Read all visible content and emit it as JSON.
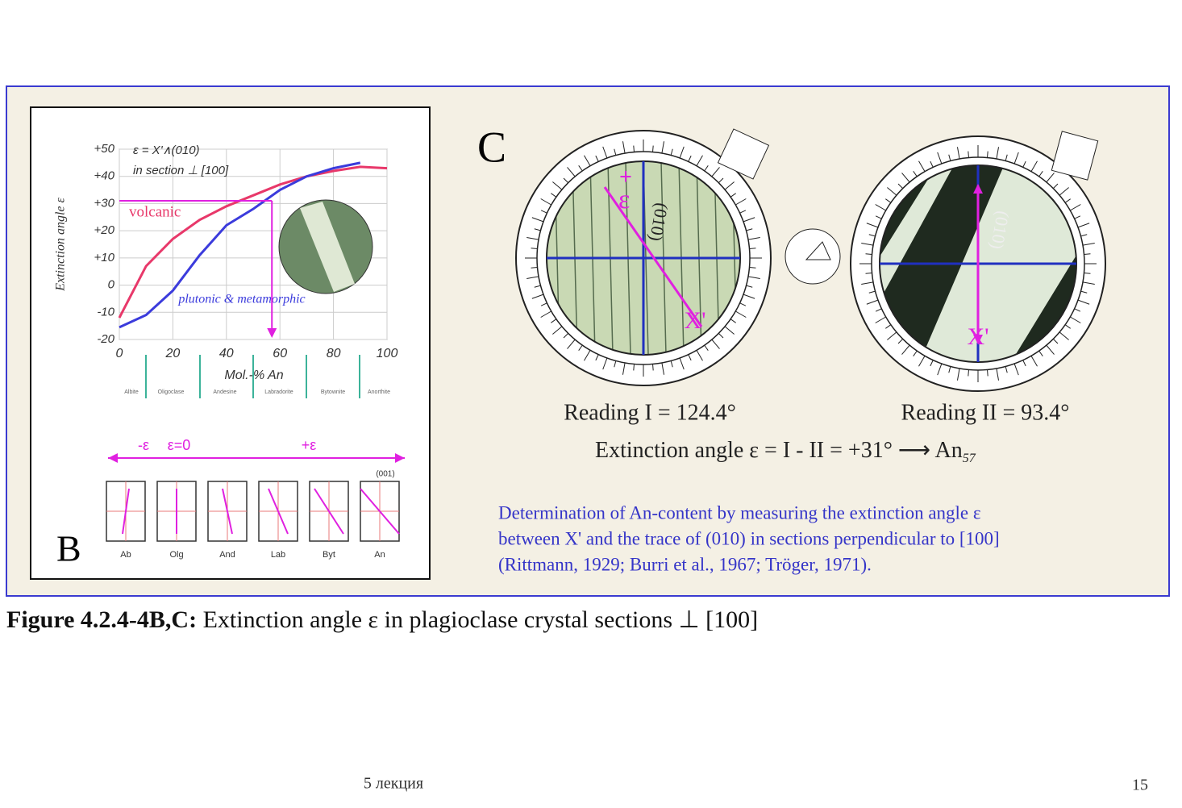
{
  "chart_data": {
    "type": "line",
    "x": [
      0,
      10,
      20,
      30,
      40,
      50,
      60,
      70,
      80,
      90,
      100
    ],
    "series": [
      {
        "name": "volcanic",
        "color": "#e8386a",
        "values": [
          -12,
          7,
          17,
          24,
          29,
          33,
          37,
          40,
          42,
          43.5,
          43
        ]
      },
      {
        "name": "plutonic & metamorphic",
        "color": "#3b3bdc",
        "values": [
          -15.5,
          -11,
          -2,
          11,
          22,
          28,
          35,
          40,
          43,
          45,
          null
        ]
      }
    ],
    "xlim": [
      0,
      100
    ],
    "ylim": [
      -20,
      50
    ],
    "xticks": [
      0,
      20,
      40,
      60,
      80,
      100
    ],
    "yticks": [
      {
        "value": 50,
        "label": "+50"
      },
      {
        "value": 40,
        "label": "+40"
      },
      {
        "value": 30,
        "label": "+30"
      },
      {
        "value": 20,
        "label": "+20"
      },
      {
        "value": 10,
        "label": "+10"
      },
      0,
      -10,
      -20
    ],
    "grid": true,
    "xlabel": "Mol.-% An",
    "ylabel": "Extinction angle ε",
    "annotations": [
      "ε = X'∧(010)",
      "in section ⊥ [100]"
    ],
    "guide": {
      "y": 31,
      "x": 57,
      "color": "#e020e0"
    },
    "minerals": [
      "Albite",
      "Oligoclase",
      "Andesine",
      "Labradorite",
      "Bytownite",
      "Anorthite"
    ],
    "panel_label": "B"
  },
  "schematic": {
    "signs": [
      "-ε",
      "ε=0",
      "+ε"
    ],
    "face": "(001)",
    "labels": [
      "Ab",
      "Olg",
      "And",
      "Lab",
      "Byt",
      "An"
    ]
  },
  "panel_c": {
    "panel_label": "C",
    "dial_1": {
      "plus": "+",
      "epsilon": "ε",
      "trace": "(010)",
      "direction": "X'"
    },
    "dial_2": {
      "trace": "(010)",
      "direction": "X'"
    },
    "reading_1": "Reading I = 124.4°",
    "reading_2": "Reading II = 93.4°",
    "result": "Extinction angle  ε = I - II = +31°  ⟶ An",
    "result_sub": "57",
    "note": [
      "Determination of An-content by measuring the extinction angle ε",
      "between X' and the trace of (010) in sections perpendicular to [100]",
      "(Rittmann, 1929; Burri et al., 1967; Tröger, 1971)."
    ]
  },
  "caption": {
    "label": "Figure 4.2.4-4B,C:",
    "text": " Extinction angle ε in plagioclase crystal sections ⊥ [100]"
  },
  "footer": {
    "left": "5 лекция",
    "page": "15"
  }
}
